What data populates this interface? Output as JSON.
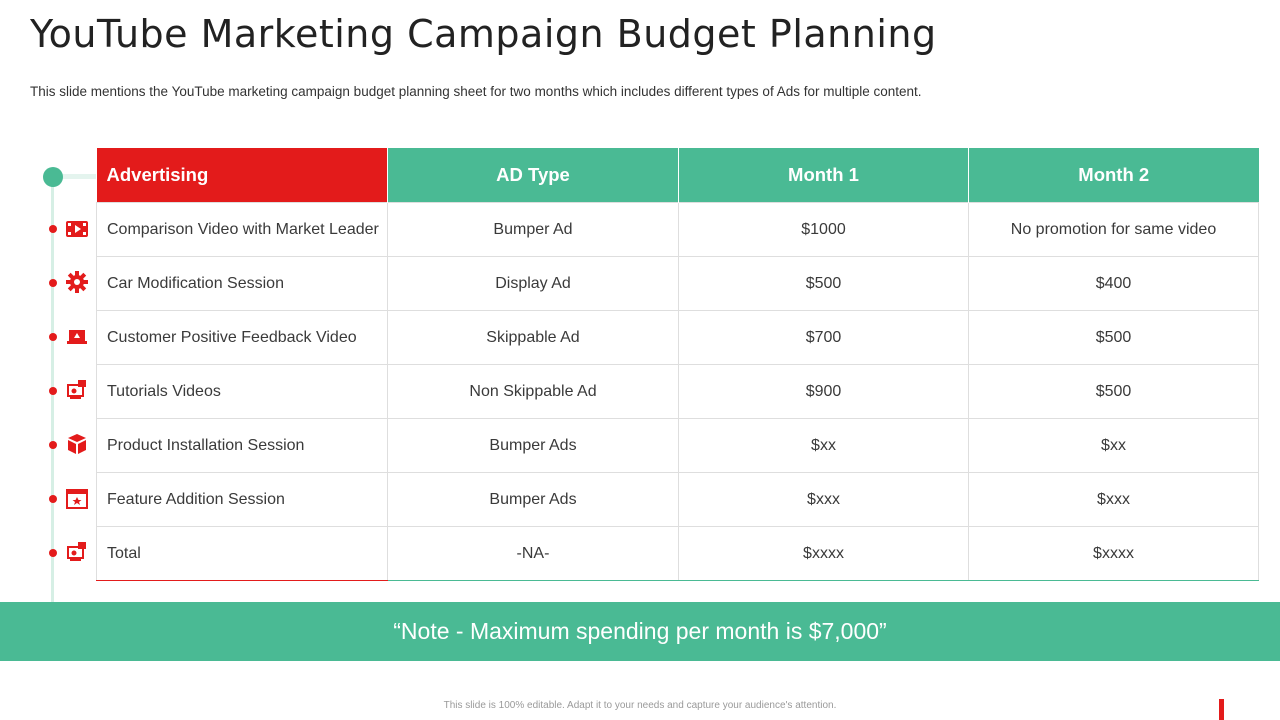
{
  "title": "YouTube Marketing Campaign Budget Planning",
  "subtitle": "This slide mentions the YouTube marketing campaign budget planning sheet for two months which includes different types of Ads for multiple content.",
  "table": {
    "headers": [
      "Advertising",
      "AD Type",
      "Month 1",
      "Month 2"
    ],
    "rows": [
      {
        "icon": "video-player-icon",
        "cells": [
          "Comparison Video with Market Leader",
          "Bumper Ad",
          "$1000",
          "No promotion for same video"
        ]
      },
      {
        "icon": "gear-icon",
        "cells": [
          "Car Modification Session",
          "Display Ad",
          "$500",
          "$400"
        ]
      },
      {
        "icon": "laptop-icon",
        "cells": [
          "Customer Positive Feedback Video",
          "Skippable Ad",
          "$700",
          "$500"
        ]
      },
      {
        "icon": "tutorial-screen-icon",
        "cells": [
          "Tutorials  Videos",
          "Non Skippable Ad",
          "$900",
          "$500"
        ]
      },
      {
        "icon": "package-box-icon",
        "cells": [
          "Product Installation  Session",
          "Bumper Ads",
          "$xx",
          "$xx"
        ]
      },
      {
        "icon": "browser-star-icon",
        "cells": [
          "Feature Addition Session",
          "Bumper Ads",
          "$xxx",
          "$xxx"
        ]
      },
      {
        "icon": "tutorial-screen-icon",
        "cells": [
          "Total",
          "-NA-",
          "$xxxx",
          "$xxxx"
        ]
      }
    ]
  },
  "note": "“Note - Maximum  spending per month is $7,000”",
  "footer": "This slide is 100% editable. Adapt it to your needs and capture your audience's attention.",
  "colors": {
    "accent_red": "#e31b1b",
    "accent_green": "#4aba94"
  }
}
